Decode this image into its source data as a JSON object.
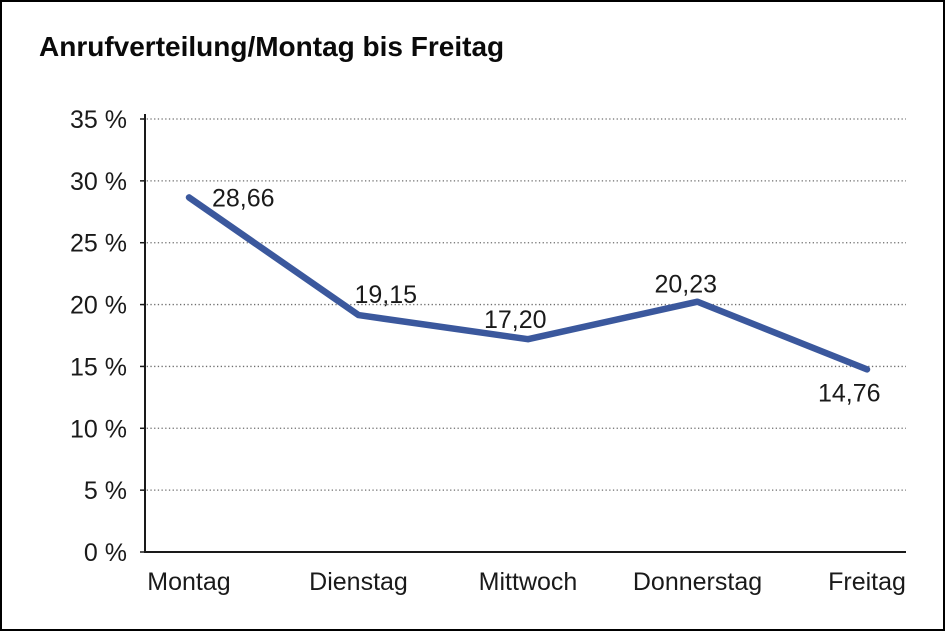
{
  "page": {
    "background_color": "#ffffff",
    "frame_color": "#000000"
  },
  "header": {
    "title": "Anrufverteilung/Montag bis Freitag"
  },
  "chart_data": {
    "type": "line",
    "title": "Anrufverteilung/Montag bis Freitag",
    "categories": [
      "Montag",
      "Dienstag",
      "Mittwoch",
      "Donnerstag",
      "Freitag"
    ],
    "series": [
      {
        "name": "Anrufverteilung",
        "values": [
          28.66,
          19.15,
          17.2,
          20.23,
          14.76
        ]
      }
    ],
    "data_labels": [
      "28,66",
      "19,15",
      "17,20",
      "20,23",
      "14,76"
    ],
    "y_ticks": [
      0,
      5,
      10,
      15,
      20,
      25,
      30,
      35
    ],
    "y_tick_labels": [
      "0 %",
      "5 %",
      "10 %",
      "15 %",
      "20 %",
      "25 %",
      "30 %",
      "35 %"
    ],
    "ylim": [
      0,
      35
    ],
    "xlabel": "",
    "ylabel": "",
    "grid": "horizontal-dotted",
    "legend": "none",
    "line_color": "#3b589d",
    "axis_color": "#1a1a1a",
    "grid_color": "#6e6e6e",
    "text_color": "#1a1a1a"
  }
}
